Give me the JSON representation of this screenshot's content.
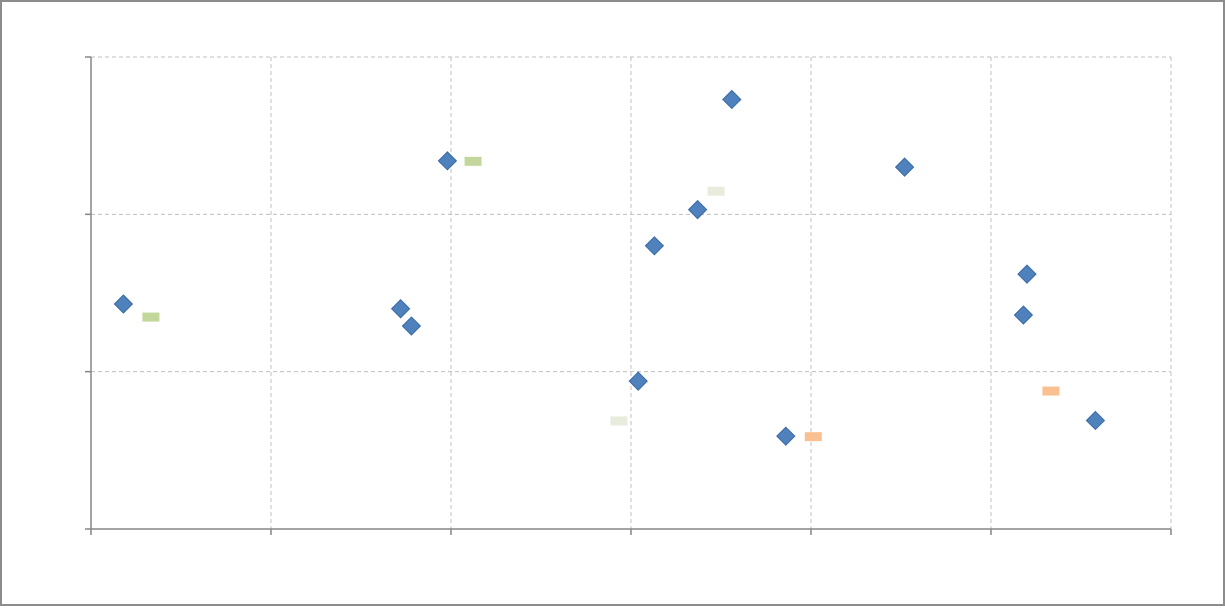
{
  "chart_data": {
    "type": "scatter",
    "xlim": [
      0,
      6
    ],
    "ylim": [
      0,
      3
    ],
    "grid": true,
    "legend": "none",
    "colors": {
      "marker": "#4f81bd",
      "marker_edge": "#3a6aa3",
      "label_green": "#c3d69b",
      "label_beige": "#e8ecdc",
      "label_peach": "#fac090"
    },
    "series": [
      {
        "marker": "diamond",
        "points": [
          {
            "x": 0.18,
            "y": 1.43
          },
          {
            "x": 1.72,
            "y": 1.4
          },
          {
            "x": 1.78,
            "y": 1.29
          },
          {
            "x": 1.98,
            "y": 2.34
          },
          {
            "x": 3.04,
            "y": 0.94
          },
          {
            "x": 3.13,
            "y": 1.8
          },
          {
            "x": 3.37,
            "y": 2.03
          },
          {
            "x": 3.56,
            "y": 2.73
          },
          {
            "x": 3.86,
            "y": 0.59
          },
          {
            "x": 4.52,
            "y": 2.3
          },
          {
            "x": 5.18,
            "y": 1.36
          },
          {
            "x": 5.2,
            "y": 1.62
          },
          {
            "x": 5.58,
            "y": 0.69
          }
        ]
      }
    ],
    "point_labels": [
      {
        "x": 0.33,
        "y": 1.35,
        "color": "label_green"
      },
      {
        "x": 2.12,
        "y": 2.34,
        "color": "label_green"
      },
      {
        "x": 2.93,
        "y": 0.69,
        "color": "label_beige"
      },
      {
        "x": 3.47,
        "y": 2.15,
        "color": "label_beige"
      },
      {
        "x": 4.01,
        "y": 0.59,
        "color": "label_peach"
      },
      {
        "x": 5.33,
        "y": 0.88,
        "color": "label_peach"
      }
    ]
  }
}
